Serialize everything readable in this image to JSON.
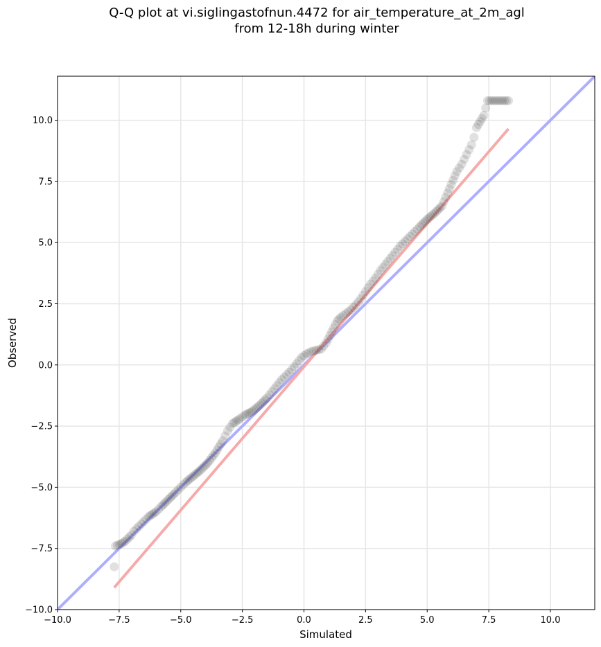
{
  "chart_data": {
    "type": "scatter",
    "title_lines": [
      "Q-Q plot at vi.siglingastofnun.4472 for air_temperature_at_2m_agl",
      "from 12-18h during winter"
    ],
    "xlabel": "Simulated",
    "ylabel": "Observed",
    "xlim": [
      -10.0,
      11.8
    ],
    "ylim": [
      -10.0,
      11.8
    ],
    "xticks": [
      -10.0,
      -7.5,
      -5.0,
      -2.5,
      0.0,
      2.5,
      5.0,
      7.5,
      10.0
    ],
    "yticks": [
      -10.0,
      -7.5,
      -5.0,
      -2.5,
      0.0,
      2.5,
      5.0,
      7.5,
      10.0
    ],
    "xtick_labels": [
      "−10.0",
      "−7.5",
      "−5.0",
      "−2.5",
      "0.0",
      "2.5",
      "5.0",
      "7.5",
      "10.0"
    ],
    "ytick_labels": [
      "−10.0",
      "−7.5",
      "−5.0",
      "−2.5",
      "0.0",
      "2.5",
      "5.0",
      "7.5",
      "10.0"
    ],
    "grid": true,
    "reference_line": {
      "x": [
        -10.0,
        11.8
      ],
      "y": [
        -10.0,
        11.8
      ],
      "color": "#aaaaff"
    },
    "fit_line": {
      "x": [
        -7.7,
        8.3
      ],
      "y": [
        -9.1,
        9.65
      ],
      "color": "#f5a5a5"
    },
    "quantiles": {
      "x": [
        -7.7,
        -7.65,
        -7.4,
        -7.25,
        -7.0,
        -6.9,
        -6.7,
        -6.5,
        -6.3,
        -6.0,
        -5.8,
        -5.5,
        -5.2,
        -5.0,
        -4.8,
        -4.5,
        -4.2,
        -3.9,
        -3.6,
        -3.3,
        -3.1,
        -2.9,
        -2.6,
        -2.4,
        -2.1,
        -1.8,
        -1.5,
        -1.3,
        -1.1,
        -0.9,
        -0.7,
        -0.5,
        -0.3,
        -0.1,
        0.1,
        0.3,
        0.5,
        0.7,
        0.9,
        1.05,
        1.2,
        1.35,
        1.5,
        1.7,
        1.9,
        2.1,
        2.3,
        2.5,
        2.7,
        2.9,
        3.1,
        3.3,
        3.5,
        3.7,
        3.9,
        4.1,
        4.3,
        4.5,
        4.7,
        5.0,
        5.3,
        5.6,
        5.9,
        6.2,
        6.4,
        6.6,
        6.8,
        6.9,
        7.0,
        7.3,
        7.45,
        8.3
      ],
      "y": [
        -8.25,
        -7.4,
        -7.3,
        -7.2,
        -6.95,
        -6.8,
        -6.6,
        -6.4,
        -6.2,
        -6.0,
        -5.8,
        -5.5,
        -5.2,
        -5.0,
        -4.8,
        -4.55,
        -4.3,
        -4.0,
        -3.6,
        -3.1,
        -2.7,
        -2.4,
        -2.2,
        -2.05,
        -1.9,
        -1.65,
        -1.35,
        -1.1,
        -0.85,
        -0.6,
        -0.4,
        -0.2,
        0.05,
        0.3,
        0.45,
        0.55,
        0.6,
        0.65,
        0.9,
        1.2,
        1.5,
        1.8,
        1.95,
        2.1,
        2.25,
        2.45,
        2.7,
        3.0,
        3.3,
        3.55,
        3.85,
        4.1,
        4.35,
        4.6,
        4.85,
        5.05,
        5.25,
        5.45,
        5.65,
        5.95,
        6.2,
        6.5,
        7.2,
        7.9,
        8.2,
        8.6,
        9.0,
        9.3,
        9.7,
        10.2,
        10.8,
        10.8
      ]
    }
  }
}
